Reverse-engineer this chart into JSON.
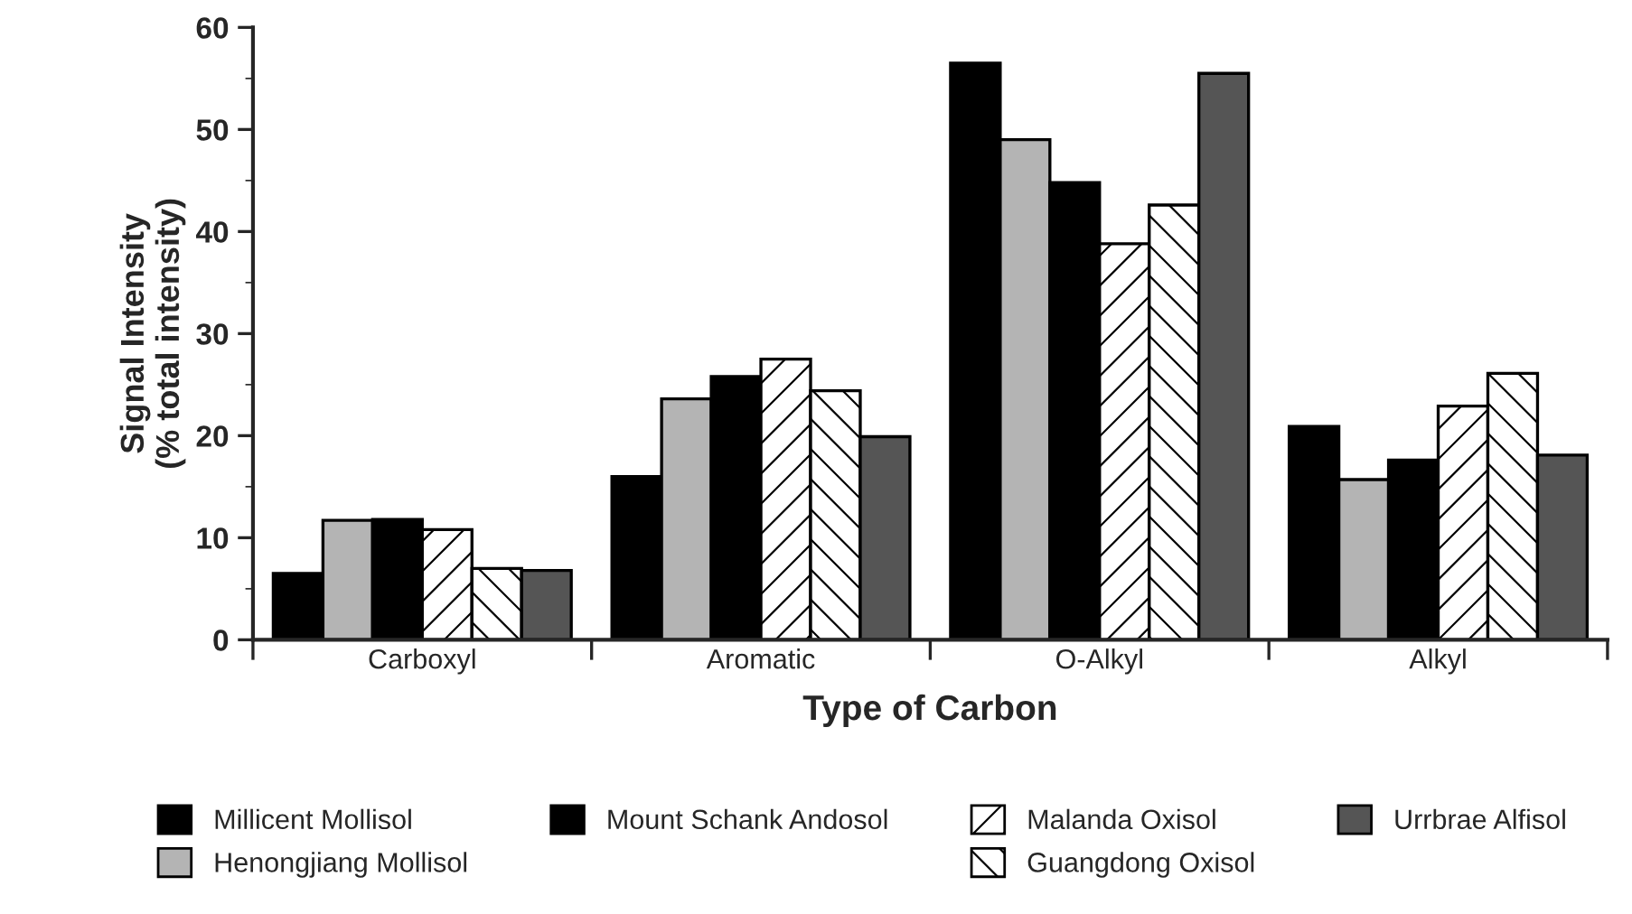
{
  "chart_data": {
    "type": "bar",
    "xlabel": "Type of Carbon",
    "ylabel": "Signal Intensity\n(% total intensity)",
    "categories": [
      "Carboxyl",
      "Aromatic",
      "O-Alkyl",
      "Alkyl"
    ],
    "series": [
      {
        "name": "Millicent Mollisol",
        "color": "#000000",
        "values": [
          6.5,
          16.0,
          56.5,
          20.9
        ]
      },
      {
        "name": "Henongjiang Mollisol",
        "color": "#b4b4b4",
        "values": [
          11.7,
          23.6,
          49.0,
          15.7
        ]
      },
      {
        "name": "Mount Schank Andosol",
        "color": "#000000",
        "values": [
          11.8,
          25.8,
          44.8,
          17.6
        ]
      },
      {
        "name": "Malanda Oxisol",
        "color": "#000000",
        "values": [
          10.8,
          27.5,
          38.8,
          22.9
        ]
      },
      {
        "name": "Guangdong Oxisol",
        "color": "#000000",
        "values": [
          7.0,
          24.4,
          42.6,
          26.1
        ]
      },
      {
        "name": "Urrbrae Alfisol",
        "color": "#555555",
        "values": [
          6.8,
          19.9,
          55.5,
          18.1
        ]
      }
    ],
    "ylim": [
      0,
      60
    ],
    "yticks": [
      0,
      10,
      20,
      30,
      40,
      50,
      60
    ],
    "grid": false,
    "legend": "bottom"
  }
}
